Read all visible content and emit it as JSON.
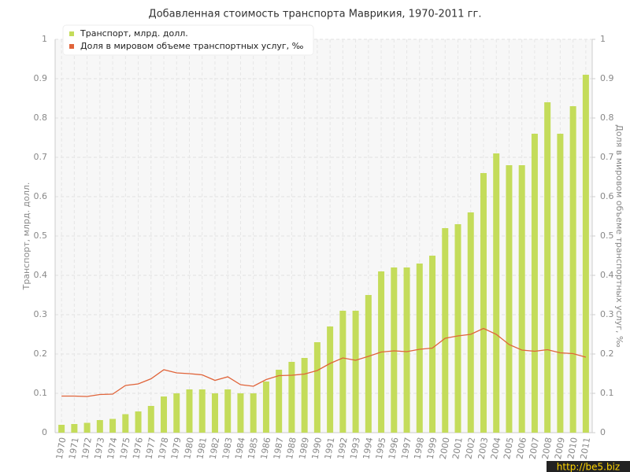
{
  "chart_data": {
    "type": "bar_line",
    "title": "Добавленная стоимость транспорта Маврикия, 1970-2011 гг.",
    "y_label": "Транспорт, млрд. долл.",
    "y2_label": "Доля в мировом объеме транспортных услуг, ‰",
    "watermark": "http://be5.biz",
    "categories": [
      "1970",
      "1971",
      "1972",
      "1973",
      "1974",
      "1975",
      "1976",
      "1977",
      "1978",
      "1979",
      "1980",
      "1981",
      "1982",
      "1983",
      "1984",
      "1985",
      "1986",
      "1987",
      "1988",
      "1989",
      "1990",
      "1991",
      "1992",
      "1993",
      "1994",
      "1995",
      "1996",
      "1997",
      "1998",
      "1999",
      "2000",
      "2001",
      "2002",
      "2003",
      "2004",
      "2005",
      "2006",
      "2007",
      "2008",
      "2009",
      "2010",
      "2011"
    ],
    "series": [
      {
        "name": "Транспорт, млрд. долл.",
        "color": "#c4dc5a",
        "type": "bar",
        "values": [
          0.02,
          0.022,
          0.025,
          0.032,
          0.035,
          0.047,
          0.054,
          0.068,
          0.092,
          0.1,
          0.11,
          0.11,
          0.1,
          0.11,
          0.1,
          0.1,
          0.13,
          0.16,
          0.18,
          0.19,
          0.23,
          0.27,
          0.31,
          0.31,
          0.35,
          0.41,
          0.42,
          0.42,
          0.43,
          0.45,
          0.52,
          0.53,
          0.56,
          0.66,
          0.71,
          0.68,
          0.68,
          0.76,
          0.84,
          0.76,
          0.83,
          0.91
        ]
      },
      {
        "name": "Доля в мировом объеме транспортных услуг, ‰",
        "color": "#e0643a",
        "type": "line",
        "axis": "y2",
        "values": [
          0.093,
          0.093,
          0.092,
          0.097,
          0.098,
          0.12,
          0.124,
          0.137,
          0.16,
          0.152,
          0.15,
          0.147,
          0.133,
          0.142,
          0.122,
          0.118,
          0.135,
          0.145,
          0.146,
          0.149,
          0.158,
          0.176,
          0.19,
          0.184,
          0.194,
          0.205,
          0.208,
          0.206,
          0.212,
          0.215,
          0.24,
          0.246,
          0.25,
          0.265,
          0.25,
          0.224,
          0.21,
          0.207,
          0.211,
          0.203,
          0.201,
          0.192
        ]
      }
    ],
    "ylim": [
      0,
      1
    ],
    "yticks": [
      0,
      0.1,
      0.2,
      0.3,
      0.4,
      0.5,
      0.6,
      0.7,
      0.8,
      0.9,
      1
    ],
    "y2lim": [
      0,
      1
    ],
    "y2ticks": [
      0,
      0.1,
      0.2,
      0.3,
      0.4,
      0.5,
      0.6,
      0.7,
      0.8,
      0.9,
      1
    ],
    "grid": true,
    "legend": "top-left"
  }
}
